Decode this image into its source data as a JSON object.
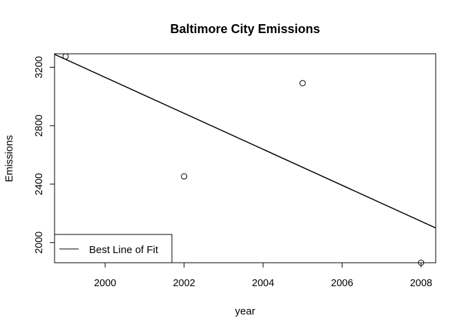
{
  "chart_data": {
    "type": "scatter",
    "title": "Baltimore City Emissions",
    "xlabel": "year",
    "ylabel": "Emissions",
    "xlim": [
      1998.72,
      2008.37
    ],
    "ylim": [
      1862,
      3292
    ],
    "xticks": [
      2000,
      2002,
      2004,
      2006,
      2008
    ],
    "yticks": [
      2000,
      2400,
      2800,
      3200
    ],
    "grid": false,
    "series": [
      {
        "type": "scatter",
        "marker": "open-circle",
        "x": [
          1999,
          2002,
          2005,
          2008
        ],
        "y": [
          3274,
          2453,
          3091,
          1862
        ]
      },
      {
        "type": "line",
        "name": "Best Line of Fit",
        "color": "#000000",
        "intercept_at_first_x": 3254,
        "slope": -123.14
      }
    ],
    "legend": {
      "position": "bottom-left",
      "entries": [
        "Best Line of Fit"
      ]
    }
  }
}
